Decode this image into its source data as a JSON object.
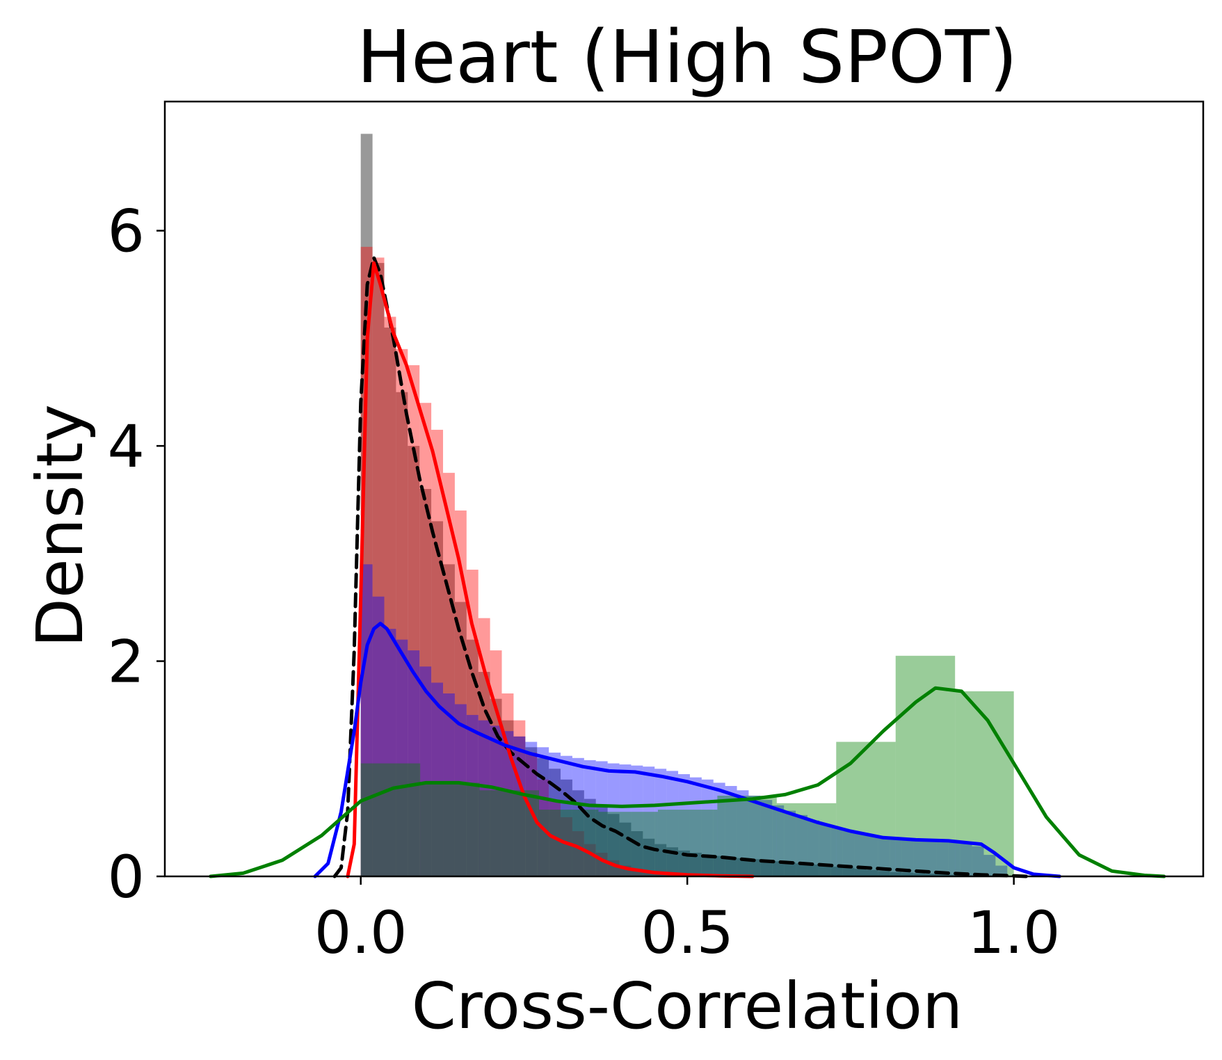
{
  "chart_data": {
    "type": "histogram-kde",
    "title": "Heart (High SPOT)",
    "xlabel": "Cross-Correlation",
    "ylabel": "Density",
    "xlim": [
      -0.3,
      1.29
    ],
    "ylim": [
      0,
      7.2
    ],
    "xticks": [
      0.0,
      0.5,
      1.0
    ],
    "xtick_labels": [
      "0.0",
      "0.5",
      "1.0"
    ],
    "yticks": [
      0,
      2,
      4,
      6
    ],
    "ytick_labels": [
      "0",
      "2",
      "4",
      "6"
    ],
    "grid": false,
    "legend": "none",
    "series": [
      {
        "color": "#808080",
        "hist_opacity": 0.8,
        "bin_edges": [
          0.0,
          0.018,
          0.036,
          0.054,
          0.072,
          0.09,
          0.108,
          0.126,
          0.144,
          0.162,
          0.18,
          0.198,
          0.216,
          0.234,
          0.252,
          0.27,
          0.288,
          0.306,
          0.324,
          0.342,
          0.36,
          0.378,
          0.396,
          0.414,
          0.432,
          0.45,
          0.468,
          0.486,
          0.504,
          0.522,
          0.54,
          0.558,
          0.576,
          0.594,
          0.612,
          0.63,
          0.648,
          0.666,
          0.684,
          0.702,
          0.72,
          0.738,
          0.756,
          0.774,
          0.792,
          0.81,
          0.828,
          0.846,
          0.864,
          0.882,
          0.9,
          0.918,
          0.936,
          0.954,
          0.972,
          0.99
        ],
        "hist": [
          6.9,
          5.7,
          5.1,
          4.5,
          4.0,
          3.6,
          3.3,
          2.9,
          2.55,
          2.2,
          1.9,
          1.65,
          1.45,
          1.3,
          1.2,
          1.1,
          1.0,
          0.9,
          0.8,
          0.72,
          0.65,
          0.58,
          0.5,
          0.42,
          0.35,
          0.3,
          0.27,
          0.24,
          0.22,
          0.2,
          0.19,
          0.18,
          0.17,
          0.16,
          0.15,
          0.14,
          0.13,
          0.12,
          0.11,
          0.1,
          0.09,
          0.08,
          0.07,
          0.06,
          0.05,
          0.04,
          0.035,
          0.03,
          0.025,
          0.02,
          0.015,
          0.01,
          0.005,
          0.003,
          0.0
        ],
        "kde_style": "dashed",
        "kde_color": "#000000",
        "kde_x": [
          -0.04,
          -0.03,
          -0.02,
          -0.01,
          0.0,
          0.01,
          0.02,
          0.03,
          0.05,
          0.07,
          0.09,
          0.11,
          0.13,
          0.15,
          0.17,
          0.19,
          0.21,
          0.23,
          0.25,
          0.27,
          0.29,
          0.31,
          0.33,
          0.35,
          0.37,
          0.39,
          0.41,
          0.43,
          0.45,
          0.5,
          0.55,
          0.6,
          0.65,
          0.7,
          0.75,
          0.8,
          0.85,
          0.9,
          0.95,
          1.0,
          1.02
        ],
        "kde_y": [
          0.0,
          0.08,
          0.6,
          2.1,
          4.4,
          5.5,
          5.75,
          5.6,
          5.0,
          4.3,
          3.7,
          3.2,
          2.75,
          2.3,
          1.9,
          1.55,
          1.3,
          1.15,
          1.05,
          0.95,
          0.87,
          0.78,
          0.68,
          0.55,
          0.47,
          0.42,
          0.35,
          0.28,
          0.25,
          0.2,
          0.18,
          0.15,
          0.13,
          0.11,
          0.09,
          0.07,
          0.05,
          0.03,
          0.015,
          0.005,
          0.0
        ]
      },
      {
        "color": "#ff0000",
        "hist_opacity": 0.4,
        "bin_edges": [
          0.0,
          0.018,
          0.036,
          0.054,
          0.072,
          0.09,
          0.108,
          0.126,
          0.144,
          0.162,
          0.18,
          0.198,
          0.216,
          0.234,
          0.252,
          0.27,
          0.288,
          0.306,
          0.324,
          0.342,
          0.36,
          0.378,
          0.396,
          0.414,
          0.432,
          0.45,
          0.468,
          0.486,
          0.504,
          0.522,
          0.54
        ],
        "hist": [
          5.85,
          5.75,
          5.2,
          4.9,
          4.75,
          4.4,
          4.15,
          3.75,
          3.4,
          2.85,
          2.4,
          2.1,
          1.7,
          1.45,
          1.15,
          0.9,
          0.7,
          0.55,
          0.42,
          0.3,
          0.22,
          0.15,
          0.1,
          0.07,
          0.05,
          0.03,
          0.02,
          0.01,
          0.005,
          0.0
        ],
        "kde_style": "solid",
        "kde_color": "#ff0000",
        "kde_x": [
          -0.02,
          -0.01,
          0.0,
          0.01,
          0.02,
          0.03,
          0.05,
          0.07,
          0.09,
          0.11,
          0.13,
          0.15,
          0.17,
          0.19,
          0.21,
          0.23,
          0.25,
          0.27,
          0.29,
          0.31,
          0.33,
          0.35,
          0.37,
          0.39,
          0.41,
          0.45,
          0.5,
          0.55,
          0.6
        ],
        "kde_y": [
          0.0,
          0.3,
          2.6,
          5.0,
          5.7,
          5.5,
          5.05,
          4.75,
          4.35,
          3.95,
          3.45,
          2.95,
          2.35,
          1.9,
          1.5,
          1.1,
          0.75,
          0.5,
          0.38,
          0.32,
          0.28,
          0.22,
          0.15,
          0.1,
          0.07,
          0.035,
          0.015,
          0.005,
          0.0
        ]
      },
      {
        "color": "#0000ff",
        "hist_opacity": 0.4,
        "bin_edges": [
          0.0,
          0.018,
          0.036,
          0.054,
          0.072,
          0.09,
          0.108,
          0.126,
          0.144,
          0.162,
          0.18,
          0.198,
          0.216,
          0.234,
          0.252,
          0.27,
          0.288,
          0.306,
          0.324,
          0.342,
          0.36,
          0.378,
          0.396,
          0.414,
          0.432,
          0.45,
          0.468,
          0.486,
          0.504,
          0.522,
          0.54,
          0.558,
          0.576,
          0.594,
          0.612,
          0.63,
          0.648,
          0.666,
          0.684,
          0.702,
          0.72,
          0.738,
          0.756,
          0.774,
          0.792,
          0.81,
          0.828,
          0.846,
          0.864,
          0.882,
          0.9,
          0.918,
          0.936,
          0.954,
          0.972,
          0.99
        ],
        "hist": [
          2.9,
          2.6,
          2.3,
          2.2,
          2.1,
          1.95,
          1.8,
          1.7,
          1.6,
          1.5,
          1.45,
          1.4,
          1.35,
          1.3,
          1.25,
          1.2,
          1.15,
          1.12,
          1.1,
          1.08,
          1.07,
          1.05,
          1.04,
          1.03,
          1.02,
          1.0,
          0.98,
          0.95,
          0.92,
          0.9,
          0.87,
          0.84,
          0.8,
          0.75,
          0.71,
          0.66,
          0.61,
          0.57,
          0.52,
          0.48,
          0.45,
          0.42,
          0.4,
          0.38,
          0.37,
          0.36,
          0.35,
          0.35,
          0.34,
          0.34,
          0.33,
          0.32,
          0.28,
          0.2,
          0.1
        ],
        "kde_style": "solid",
        "kde_color": "#0000ff",
        "kde_x": [
          -0.07,
          -0.05,
          -0.03,
          -0.01,
          0.0,
          0.01,
          0.02,
          0.03,
          0.04,
          0.06,
          0.08,
          0.1,
          0.12,
          0.15,
          0.18,
          0.22,
          0.26,
          0.3,
          0.34,
          0.38,
          0.42,
          0.46,
          0.5,
          0.55,
          0.6,
          0.65,
          0.7,
          0.75,
          0.8,
          0.85,
          0.9,
          0.95,
          0.97,
          1.0,
          1.03,
          1.07
        ],
        "kde_y": [
          0.0,
          0.12,
          0.6,
          1.35,
          1.8,
          2.15,
          2.3,
          2.35,
          2.3,
          2.1,
          1.9,
          1.72,
          1.58,
          1.42,
          1.33,
          1.22,
          1.14,
          1.08,
          1.02,
          0.98,
          0.97,
          0.93,
          0.88,
          0.8,
          0.7,
          0.6,
          0.5,
          0.42,
          0.36,
          0.34,
          0.33,
          0.3,
          0.22,
          0.08,
          0.02,
          0.0
        ]
      },
      {
        "color": "#008000",
        "hist_opacity": 0.4,
        "bin_edges": [
          0.0,
          0.091,
          0.182,
          0.273,
          0.364,
          0.455,
          0.546,
          0.637,
          0.728,
          0.819,
          0.91,
          1.0
        ],
        "hist": [
          1.05,
          0.87,
          0.8,
          0.62,
          0.6,
          0.62,
          0.75,
          0.68,
          1.25,
          2.05,
          1.72
        ],
        "kde_style": "solid",
        "kde_color": "#008000",
        "kde_x": [
          -0.23,
          -0.18,
          -0.12,
          -0.06,
          0.0,
          0.05,
          0.1,
          0.15,
          0.2,
          0.25,
          0.3,
          0.35,
          0.4,
          0.45,
          0.5,
          0.55,
          0.6,
          0.65,
          0.7,
          0.75,
          0.8,
          0.85,
          0.88,
          0.92,
          0.96,
          1.0,
          1.05,
          1.1,
          1.15,
          1.2,
          1.23
        ],
        "kde_y": [
          0.0,
          0.03,
          0.15,
          0.38,
          0.7,
          0.82,
          0.87,
          0.87,
          0.83,
          0.76,
          0.7,
          0.66,
          0.65,
          0.66,
          0.68,
          0.7,
          0.72,
          0.76,
          0.85,
          1.05,
          1.35,
          1.62,
          1.75,
          1.72,
          1.45,
          1.05,
          0.55,
          0.2,
          0.05,
          0.01,
          0.0
        ]
      }
    ]
  }
}
